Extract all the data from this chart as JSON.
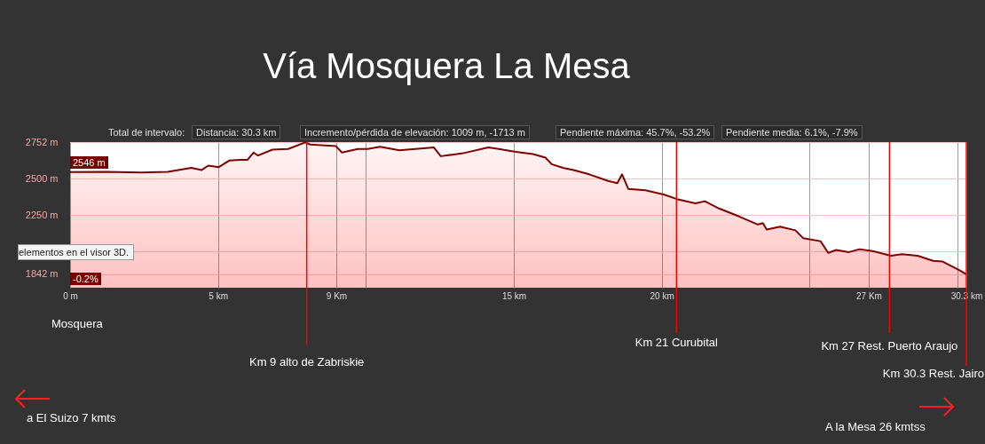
{
  "chart_data": {
    "type": "area",
    "title": "Vía Mosquera La Mesa",
    "xlim": [
      0,
      30.3
    ],
    "ylim": [
      1750,
      2752
    ],
    "xticks": [
      {
        "value": 0,
        "label": "0 m"
      },
      {
        "value": 5,
        "label": "5 km"
      },
      {
        "value": 9,
        "label": "9 Km"
      },
      {
        "value": 10,
        "label": null
      },
      {
        "value": 15,
        "label": "15 km"
      },
      {
        "value": 20,
        "label": "20 km"
      },
      {
        "value": 25,
        "label": null
      },
      {
        "value": 27,
        "label": "27  Km"
      },
      {
        "value": 30,
        "label": null
      },
      {
        "value": 30.3,
        "label": "30.3 km"
      }
    ],
    "yticks": [
      {
        "value": 1842,
        "label": "1842 m"
      },
      {
        "value": 2000,
        "label": null
      },
      {
        "value": 2250,
        "label": "2250 m"
      },
      {
        "value": 2500,
        "label": "2500 m"
      },
      {
        "value": 2752,
        "label": "2752 m"
      }
    ],
    "grid": true,
    "x": [
      0,
      1.24,
      2.4,
      3.3,
      4.1,
      4.45,
      4.67,
      5.03,
      5.38,
      5.75,
      6.0,
      6.2,
      6.35,
      6.84,
      7.37,
      7.95,
      8.12,
      8.98,
      9.19,
      9.73,
      10.06,
      10.48,
      11.13,
      12.3,
      12.53,
      13.28,
      14.14,
      14.49,
      15.07,
      15.65,
      16.07,
      16.28,
      16.66,
      17.02,
      17.55,
      18.19,
      18.5,
      18.66,
      18.87,
      19.45,
      20.09,
      20.51,
      21.14,
      21.46,
      21.94,
      22.62,
      23.25,
      23.42,
      23.55,
      24.0,
      24.52,
      24.79,
      25.37,
      25.63,
      25.9,
      26.33,
      26.69,
      27.17,
      27.75,
      28.12,
      28.65,
      29.18,
      29.5,
      30.07,
      30.3
    ],
    "series": [
      {
        "color": "#800000",
        "values": [
          2546,
          2548,
          2543,
          2548,
          2575,
          2560,
          2590,
          2580,
          2625,
          2630,
          2630,
          2680,
          2660,
          2700,
          2705,
          2750,
          2735,
          2725,
          2680,
          2705,
          2705,
          2720,
          2695,
          2715,
          2655,
          2675,
          2715,
          2705,
          2685,
          2670,
          2645,
          2600,
          2575,
          2560,
          2530,
          2485,
          2470,
          2530,
          2430,
          2420,
          2390,
          2360,
          2330,
          2345,
          2295,
          2240,
          2185,
          2195,
          2150,
          2170,
          2145,
          2090,
          2070,
          1990,
          2010,
          1995,
          2015,
          2000,
          1970,
          1980,
          1970,
          1935,
          1930,
          1870,
          1842
        ]
      }
    ],
    "ref_lines": [
      {
        "axis": "x",
        "value": 8,
        "label": "Km 9 alto de Zabriskie",
        "color": "#ff0000"
      },
      {
        "axis": "x",
        "value": 20.5,
        "label": "Km 21 Curubital",
        "color": "#ff0000"
      },
      {
        "axis": "x",
        "value": 27.7,
        "label": "Km 27 Rest. Puerto Araujo",
        "color": "#ff0000"
      },
      {
        "axis": "x",
        "value": 30.3,
        "label": "Km 30.3 Rest. Jairo",
        "color": "#ff0000"
      }
    ],
    "annotations": [
      "Total de intervalo:",
      "Distancia: 30.3 km",
      "Incremento/pérdida de elevación: 1009 m, -1713 m",
      "Pendiente máxima: 45.7%, -53.2%",
      "Pendiente media: 6.1%, -7.9%",
      "2546 m",
      "-0.2%",
      "elementos en el visor 3D.",
      "Mosquera",
      "a El Suizo 7 kmts",
      "A la Mesa 26 kmtss"
    ]
  }
}
